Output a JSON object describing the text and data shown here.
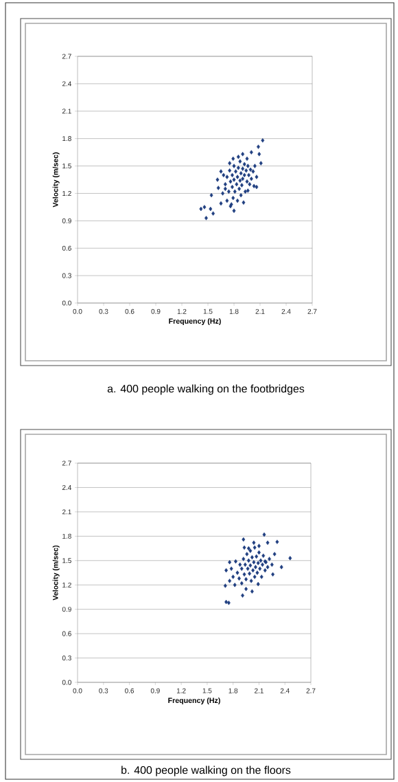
{
  "chart_data": [
    {
      "type": "scatter",
      "title": "a.  400 people walking on the footbridges",
      "xlabel": "Frequency (Hz)",
      "ylabel": "Velocity  (m/sec)",
      "color": "#203f80",
      "marker": "diamond",
      "grid": "y",
      "xlim": [
        0,
        2.7
      ],
      "ylim": [
        0,
        2.7
      ],
      "xticks": [
        {
          "value": 0,
          "label": "0.0"
        },
        {
          "value": 0.3,
          "label": "0.3"
        },
        {
          "value": 0.6,
          "label": "0.6"
        },
        {
          "value": 0.9,
          "label": "0.9"
        },
        {
          "value": 1.2,
          "label": "1.2"
        },
        {
          "value": 1.5,
          "label": "1.5"
        },
        {
          "value": 1.8,
          "label": "1.8"
        },
        {
          "value": 2.1,
          "label": "2.1"
        },
        {
          "value": 2.4,
          "label": "2.4"
        },
        {
          "value": 2.7,
          "label": "2.7"
        }
      ],
      "yticks": [
        {
          "value": 0,
          "label": "0.0"
        },
        {
          "value": 0.3,
          "label": "0.3"
        },
        {
          "value": 0.6,
          "label": "0.6"
        },
        {
          "value": 0.9,
          "label": "0.9"
        },
        {
          "value": 1.2,
          "label": "1.2"
        },
        {
          "value": 1.5,
          "label": "1.5"
        },
        {
          "value": 1.8,
          "label": "1.8"
        },
        {
          "value": 2.1,
          "label": "2.1"
        },
        {
          "value": 2.4,
          "label": "2.4"
        },
        {
          "value": 2.7,
          "label": "2.7"
        }
      ],
      "x": [
        2.13,
        2.08,
        2.09,
        2.11,
        2.0,
        1.9,
        1.79,
        1.75,
        2.06,
        2.06,
        1.96,
        1.8,
        1.76,
        1.65,
        1.54,
        1.56,
        1.53,
        1.48,
        1.46,
        1.42,
        1.61,
        1.65,
        1.62,
        1.7,
        1.72,
        1.74,
        1.75,
        1.76,
        1.78,
        1.78,
        1.79,
        1.8,
        1.8,
        1.81,
        1.82,
        1.83,
        1.84,
        1.84,
        1.85,
        1.86,
        1.87,
        1.87,
        1.88,
        1.88,
        1.89,
        1.9,
        1.9,
        1.91,
        1.92,
        1.92,
        1.93,
        1.94,
        1.95,
        1.96,
        1.97,
        1.98,
        1.99,
        2.0,
        2.02,
        2.03,
        1.68,
        1.67,
        1.72,
        1.95,
        1.85,
        2.04,
        1.77,
        1.7
      ],
      "values": [
        1.78,
        1.71,
        1.63,
        1.53,
        1.65,
        1.63,
        1.58,
        1.53,
        1.38,
        1.27,
        1.23,
        1.01,
        1.06,
        1.09,
        1.18,
        0.98,
        1.03,
        0.93,
        1.05,
        1.03,
        1.35,
        1.44,
        1.26,
        1.3,
        1.38,
        1.22,
        1.45,
        1.33,
        1.27,
        1.4,
        1.15,
        1.5,
        1.35,
        1.22,
        1.44,
        1.3,
        1.12,
        1.38,
        1.48,
        1.25,
        1.55,
        1.34,
        1.18,
        1.42,
        1.29,
        1.47,
        1.36,
        1.1,
        1.52,
        1.4,
        1.22,
        1.45,
        1.33,
        1.5,
        1.4,
        1.3,
        1.46,
        1.36,
        1.44,
        1.28,
        1.4,
        1.2,
        1.12,
        1.58,
        1.6,
        1.5,
        1.08,
        1.25
      ]
    },
    {
      "type": "scatter",
      "title": "b.  400 people walking on the floors",
      "xlabel": "Frequency (Hz)",
      "ylabel": "Velocity  (m/sec)",
      "color": "#203f80",
      "marker": "diamond",
      "grid": "y",
      "xlim": [
        0,
        2.7
      ],
      "ylim": [
        0,
        2.7
      ],
      "xticks": [
        {
          "value": 0,
          "label": "0.0"
        },
        {
          "value": 0.3,
          "label": "0.3"
        },
        {
          "value": 0.6,
          "label": "0.6"
        },
        {
          "value": 0.9,
          "label": "0.9"
        },
        {
          "value": 1.2,
          "label": "1.2"
        },
        {
          "value": 1.5,
          "label": "1.5"
        },
        {
          "value": 1.8,
          "label": "1.8"
        },
        {
          "value": 2.1,
          "label": "2.1"
        },
        {
          "value": 2.4,
          "label": "2.4"
        },
        {
          "value": 2.7,
          "label": "2.7"
        }
      ],
      "yticks": [
        {
          "value": 0,
          "label": "0.0"
        },
        {
          "value": 0.3,
          "label": "0.3"
        },
        {
          "value": 0.6,
          "label": "0.6"
        },
        {
          "value": 0.9,
          "label": "0.9"
        },
        {
          "value": 1.2,
          "label": "1.2"
        },
        {
          "value": 1.5,
          "label": "1.5"
        },
        {
          "value": 1.8,
          "label": "1.8"
        },
        {
          "value": 2.1,
          "label": "2.1"
        },
        {
          "value": 2.4,
          "label": "2.4"
        },
        {
          "value": 2.7,
          "label": "2.7"
        }
      ],
      "x": [
        2.16,
        2.46,
        1.92,
        2.31,
        1.72,
        1.75,
        1.91,
        2.09,
        1.71,
        1.76,
        1.72,
        2.36,
        2.26,
        2.28,
        2.2,
        2.04,
        1.93,
        1.83,
        2.17,
        1.85,
        1.87,
        1.88,
        1.9,
        1.9,
        1.92,
        1.93,
        1.94,
        1.95,
        1.96,
        1.97,
        1.98,
        1.99,
        2.0,
        2.0,
        2.01,
        2.02,
        2.03,
        2.04,
        2.05,
        2.05,
        2.06,
        2.07,
        2.08,
        2.09,
        2.1,
        2.11,
        2.12,
        2.13,
        2.14,
        2.15,
        2.17,
        2.18,
        2.2,
        2.22,
        1.8,
        1.78,
        1.82,
        1.95,
        2.02,
        1.76,
        2.25,
        2.1,
        1.98
      ],
      "values": [
        1.82,
        1.53,
        1.76,
        1.73,
        0.99,
        0.98,
        1.07,
        1.21,
        1.19,
        1.48,
        1.38,
        1.42,
        1.33,
        1.58,
        1.72,
        1.72,
        1.66,
        1.49,
        1.49,
        1.35,
        1.28,
        1.45,
        1.4,
        1.22,
        1.52,
        1.33,
        1.45,
        1.27,
        1.58,
        1.4,
        1.5,
        1.34,
        1.62,
        1.44,
        1.25,
        1.54,
        1.38,
        1.48,
        1.66,
        1.3,
        1.42,
        1.55,
        1.35,
        1.47,
        1.6,
        1.4,
        1.5,
        1.3,
        1.45,
        1.56,
        1.38,
        1.48,
        1.42,
        1.52,
        1.3,
        1.4,
        1.2,
        1.15,
        1.12,
        1.25,
        1.45,
        1.68,
        1.65
      ]
    }
  ]
}
